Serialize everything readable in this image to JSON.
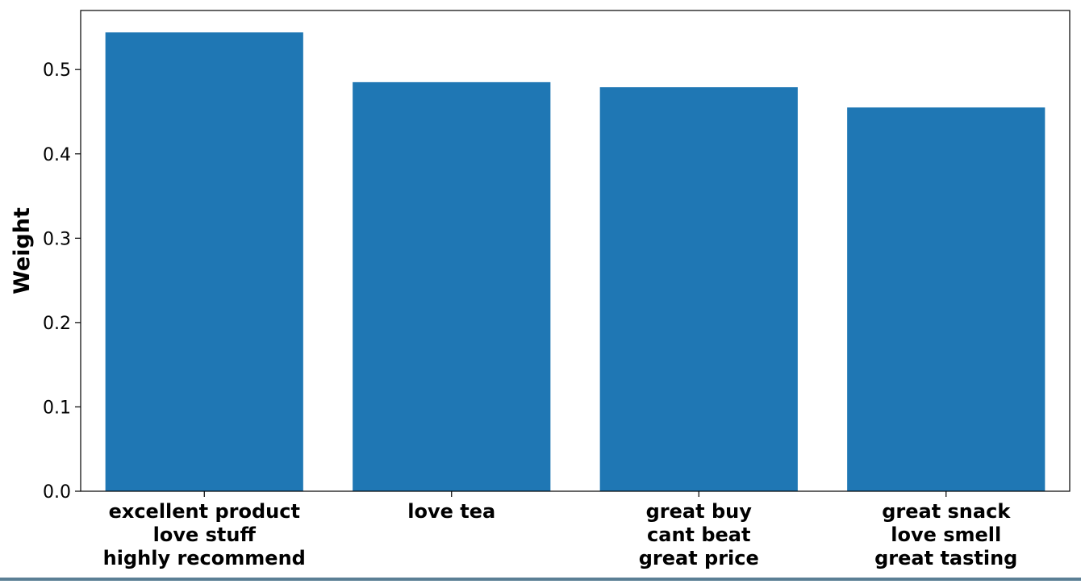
{
  "chart_data": {
    "type": "bar",
    "title": "",
    "xlabel": "",
    "ylabel": "Weight",
    "categories": [
      [
        "excellent product",
        "love stuff",
        "highly recommend"
      ],
      [
        "love tea"
      ],
      [
        "great buy",
        "cant beat",
        "great price"
      ],
      [
        "great snack",
        "love smell",
        "great tasting"
      ]
    ],
    "values": [
      0.544,
      0.485,
      0.479,
      0.455
    ],
    "ylim": [
      0,
      0.57
    ],
    "yticks": [
      "0.0",
      "0.1",
      "0.2",
      "0.3",
      "0.4",
      "0.5"
    ],
    "grid": false,
    "bar_color": "#1f77b4"
  }
}
